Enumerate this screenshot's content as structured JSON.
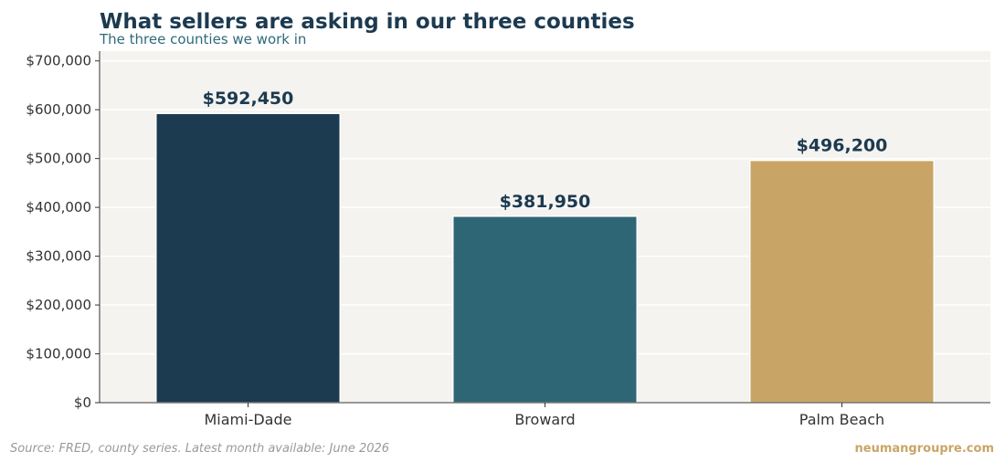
{
  "chart_data": {
    "type": "bar",
    "title": "What sellers are asking in our three counties",
    "subtitle": "The three counties we work in",
    "categories": [
      "Miami-Dade",
      "Broward",
      "Palm Beach"
    ],
    "values": [
      592450,
      381950,
      496200
    ],
    "value_labels": [
      "$592,450",
      "$381,950",
      "$496,200"
    ],
    "colors": [
      "#1c3a50",
      "#2e6675",
      "#c8a566"
    ],
    "ylim": [
      0,
      720000
    ],
    "yticks": [
      0,
      100000,
      200000,
      300000,
      400000,
      500000,
      600000,
      700000
    ],
    "ytick_labels": [
      "$0",
      "$100,000",
      "$200,000",
      "$300,000",
      "$400,000",
      "$500,000",
      "$600,000",
      "$700,000"
    ],
    "grid": true,
    "xlabel": "",
    "ylabel": ""
  },
  "footer": {
    "source": "Source: FRED, county series. Latest month available: June 2026",
    "brand": "neumangroupre.com"
  },
  "style": {
    "plot_background": "#f4f3ef",
    "grid_color": "#ffffff",
    "axis_color": "#333333"
  }
}
